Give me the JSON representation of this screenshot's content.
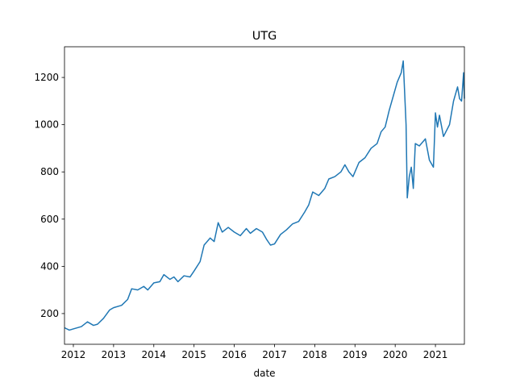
{
  "chart_data": {
    "type": "line",
    "title": "UTG",
    "x_label": "date",
    "x": [
      2011.78,
      2011.9,
      2012.0,
      2012.2,
      2012.35,
      2012.5,
      2012.6,
      2012.75,
      2012.9,
      2013.0,
      2013.2,
      2013.35,
      2013.45,
      2013.6,
      2013.75,
      2013.85,
      2014.0,
      2014.15,
      2014.25,
      2014.4,
      2014.5,
      2014.6,
      2014.75,
      2014.9,
      2015.0,
      2015.15,
      2015.25,
      2015.4,
      2015.5,
      2015.6,
      2015.7,
      2015.85,
      2016.0,
      2016.15,
      2016.3,
      2016.4,
      2016.55,
      2016.7,
      2016.8,
      2016.9,
      2017.0,
      2017.15,
      2017.3,
      2017.45,
      2017.6,
      2017.75,
      2017.85,
      2017.95,
      2018.1,
      2018.25,
      2018.35,
      2018.5,
      2018.65,
      2018.75,
      2018.85,
      2018.95,
      2019.0,
      2019.1,
      2019.25,
      2019.4,
      2019.55,
      2019.65,
      2019.75,
      2019.85,
      2019.95,
      2020.05,
      2020.15,
      2020.2,
      2020.27,
      2020.3,
      2020.35,
      2020.4,
      2020.45,
      2020.5,
      2020.6,
      2020.75,
      2020.85,
      2020.95,
      2021.0,
      2021.05,
      2021.1,
      2021.2,
      2021.35,
      2021.45,
      2021.55,
      2021.6,
      2021.65,
      2021.7,
      2021.72
    ],
    "series": [
      {
        "name": "UTG",
        "color": "#1f77b4",
        "values": [
          140,
          130,
          135,
          145,
          165,
          150,
          155,
          180,
          215,
          225,
          235,
          260,
          305,
          300,
          315,
          300,
          330,
          335,
          365,
          345,
          355,
          335,
          360,
          355,
          380,
          420,
          490,
          520,
          505,
          585,
          545,
          565,
          545,
          530,
          560,
          540,
          560,
          545,
          515,
          490,
          495,
          535,
          555,
          580,
          590,
          630,
          660,
          715,
          700,
          730,
          770,
          780,
          800,
          830,
          800,
          780,
          800,
          840,
          860,
          900,
          920,
          970,
          990,
          1060,
          1120,
          1180,
          1220,
          1270,
          1000,
          690,
          780,
          820,
          730,
          920,
          910,
          940,
          850,
          820,
          1050,
          990,
          1040,
          950,
          1000,
          1100,
          1160,
          1110,
          1100,
          1220,
          1110
        ]
      }
    ],
    "xlim": [
      2011.78,
      2021.72
    ],
    "xticks": [
      2012,
      2013,
      2014,
      2015,
      2016,
      2017,
      2018,
      2019,
      2020,
      2021
    ],
    "ylim": [
      70,
      1330
    ],
    "yticks": [
      200,
      400,
      600,
      800,
      1000,
      1200
    ]
  }
}
